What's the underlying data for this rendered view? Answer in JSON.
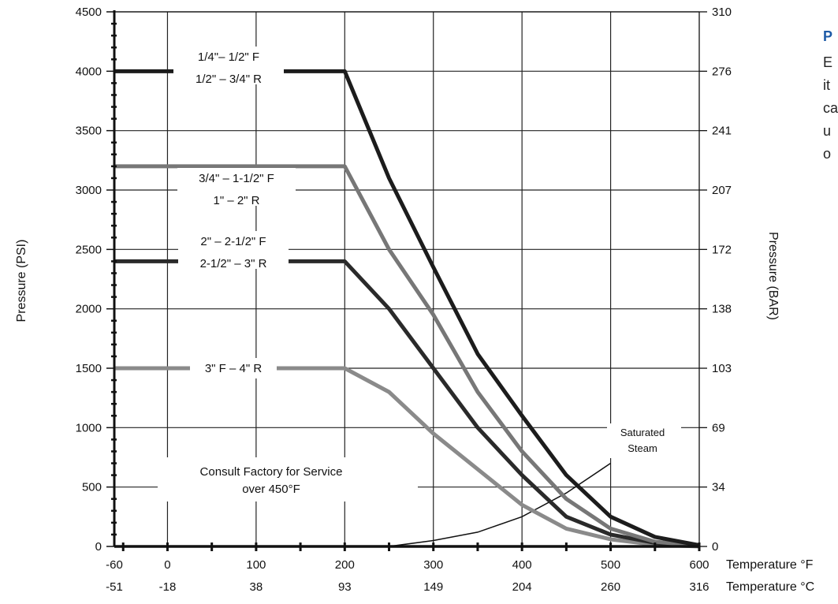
{
  "chart_data": {
    "type": "line",
    "ylabel_left": "Pressure (PSI)",
    "ylabel_right": "Pressure (BAR)",
    "xlabel_top": "Temperature °F",
    "xlabel_bottom": "Temperature °C",
    "x_ticks_f": [
      "-60",
      "0",
      "100",
      "200",
      "300",
      "400",
      "500",
      "600"
    ],
    "x_ticks_c": [
      "-51",
      "-18",
      "38",
      "93",
      "149",
      "204",
      "260",
      "316"
    ],
    "y_ticks_psi": [
      "0",
      "500",
      "1000",
      "1500",
      "2000",
      "2500",
      "3000",
      "3500",
      "4000",
      "4500"
    ],
    "y_ticks_bar": [
      "0",
      "34",
      "69",
      "103",
      "138",
      "172",
      "207",
      "241",
      "276",
      "310"
    ],
    "xlim": [
      -60,
      600
    ],
    "ylim": [
      0,
      4500
    ],
    "series": [
      {
        "label_lines": [
          "1/4\"– 1/2\" F",
          "1/2\" – 3/4\" R"
        ],
        "color": "#1c1c1c",
        "x": [
          -60,
          200,
          250,
          300,
          350,
          400,
          450,
          500,
          550,
          600
        ],
        "y": [
          4000,
          4000,
          3100,
          2350,
          1620,
          1100,
          600,
          250,
          80,
          10
        ]
      },
      {
        "label_lines": [
          "3/4\" – 1-1/2\" F",
          "1\" – 2\" R"
        ],
        "color": "#777777",
        "x": [
          -60,
          200,
          250,
          300,
          350,
          400,
          450,
          500,
          550,
          600
        ],
        "y": [
          3200,
          3200,
          2500,
          1950,
          1300,
          800,
          400,
          150,
          40,
          5
        ]
      },
      {
        "label_lines": [
          "2\" – 2-1/2\" F",
          "2-1/2\" – 3\" R"
        ],
        "color": "#2a2a2a",
        "x": [
          -60,
          200,
          250,
          300,
          350,
          400,
          450,
          500,
          550,
          600
        ],
        "y": [
          2400,
          2400,
          2000,
          1500,
          1000,
          600,
          250,
          100,
          30,
          5
        ]
      },
      {
        "label_lines": [
          "3\" F – 4\" R"
        ],
        "color": "#8a8a8a",
        "x": [
          -60,
          200,
          250,
          300,
          350,
          400,
          450,
          500,
          550,
          600
        ],
        "y": [
          1500,
          1500,
          1300,
          950,
          650,
          350,
          150,
          60,
          15,
          0
        ]
      }
    ],
    "saturated_steam": {
      "label_lines": [
        "Saturated",
        "Steam"
      ],
      "x": [
        250,
        300,
        350,
        400,
        450,
        500
      ],
      "y": [
        0,
        50,
        120,
        250,
        450,
        700
      ]
    },
    "annotation_lines": [
      "Consult Factory for Service",
      "over 450°F"
    ]
  },
  "side_panel": {
    "heading": "P",
    "lines": [
      "E",
      "it",
      "ca",
      "u",
      "o"
    ]
  }
}
